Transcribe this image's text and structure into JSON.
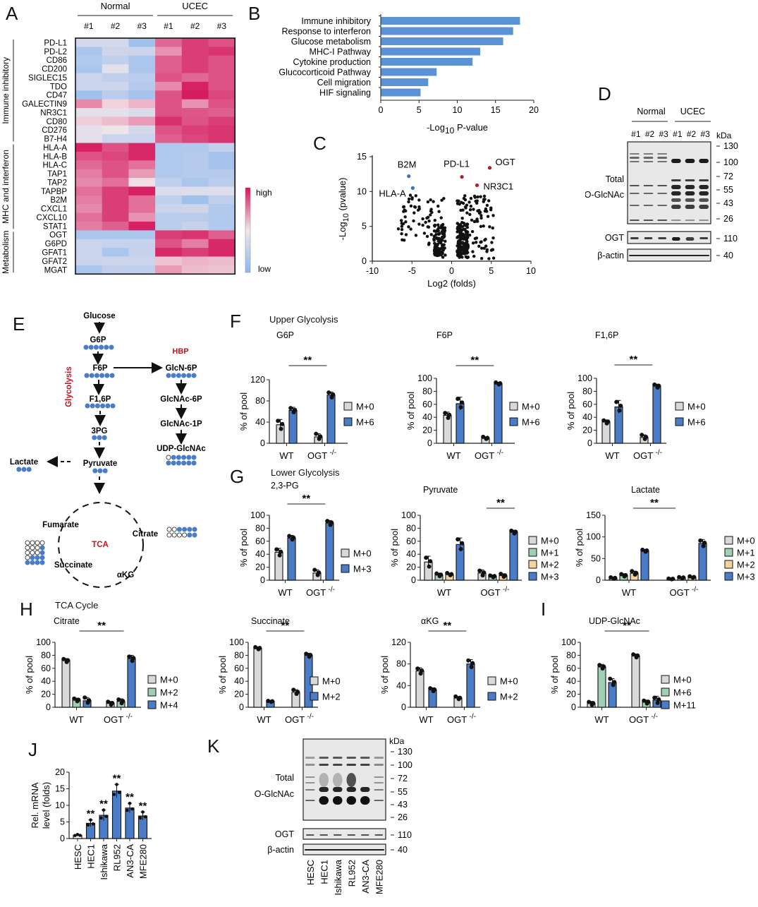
{
  "colors": {
    "blue": "#4a7cc7",
    "bar_blue": "#5b92d6",
    "gray": "#d9d9d9",
    "green": "#9fcfb4",
    "orange": "#f5d49a",
    "red_text": "#c0141e",
    "heat_high": "#d4145a",
    "heat_mid": "#f3e6ea",
    "heat_low": "#8cb8ee",
    "volcano_red": "#b01e2a",
    "volcano_blue": "#3e72c0"
  },
  "panel_labels": {
    "A": "A",
    "B": "B",
    "C": "C",
    "D": "D",
    "E": "E",
    "F": "F",
    "G": "G",
    "H": "H",
    "I": "I",
    "J": "J",
    "K": "K"
  },
  "chart_data": [
    {
      "id": "A",
      "type": "heatmap",
      "title": "",
      "column_groups": [
        {
          "label": "Normal",
          "cols": [
            "#1",
            "#2",
            "#3"
          ]
        },
        {
          "label": "UCEC",
          "cols": [
            "#1",
            "#2",
            "#3"
          ]
        }
      ],
      "columns": [
        "#1",
        "#2",
        "#3",
        "#1",
        "#2",
        "#3"
      ],
      "row_groups": [
        {
          "label": "Immune inhibitory",
          "rows": 12
        },
        {
          "label": "MHC and interferon",
          "rows": 10
        },
        {
          "label": "Metabolism",
          "rows": 5
        }
      ],
      "rows": [
        "PD-L1",
        "PD-L2",
        "CD86",
        "CD200",
        "SIGLEC15",
        "TDO",
        "CD47",
        "GALECTIN9",
        "NR3C1",
        "CD80",
        "CD276",
        "B7-H4",
        "HLA-A",
        "HLA-B",
        "HLA-C",
        "TAP1",
        "TAP2",
        "TAPBP",
        "B2M",
        "CXCL1",
        "CXCL10",
        "STAT1",
        "OGT",
        "G6PD",
        "GFAT1",
        "GFAT2",
        "MGAT"
      ],
      "values": [
        [
          0.35,
          0.35,
          0.1,
          0.8,
          0.9,
          0.85
        ],
        [
          0.15,
          0.32,
          0.3,
          0.7,
          0.9,
          0.92
        ],
        [
          0.18,
          0.25,
          0.15,
          0.82,
          0.9,
          0.85
        ],
        [
          0.15,
          0.42,
          0.15,
          0.82,
          0.9,
          0.85
        ],
        [
          0.3,
          0.25,
          0.22,
          0.85,
          0.8,
          0.85
        ],
        [
          0.3,
          0.32,
          0.2,
          0.72,
          0.97,
          0.85
        ],
        [
          0.1,
          0.22,
          0.12,
          0.85,
          0.98,
          0.88
        ],
        [
          0.72,
          0.55,
          0.62,
          0.85,
          0.7,
          0.85
        ],
        [
          0.42,
          0.42,
          0.38,
          0.85,
          0.84,
          0.82
        ],
        [
          0.56,
          0.6,
          0.68,
          0.93,
          0.85,
          0.9
        ],
        [
          0.42,
          0.48,
          0.35,
          0.85,
          0.9,
          0.92
        ],
        [
          0.42,
          0.3,
          0.3,
          0.82,
          0.88,
          0.92
        ],
        [
          0.97,
          0.85,
          0.95,
          0.18,
          0.18,
          0.25
        ],
        [
          0.85,
          0.88,
          0.95,
          0.18,
          0.2,
          0.12
        ],
        [
          0.8,
          0.85,
          0.78,
          0.18,
          0.2,
          0.12
        ],
        [
          0.75,
          0.85,
          0.68,
          0.18,
          0.2,
          0.2
        ],
        [
          0.72,
          0.78,
          0.52,
          0.25,
          0.15,
          0.22
        ],
        [
          0.78,
          0.9,
          0.97,
          0.38,
          0.4,
          0.4
        ],
        [
          0.75,
          0.9,
          0.78,
          0.25,
          0.1,
          0.25
        ],
        [
          0.72,
          0.9,
          0.78,
          0.3,
          0.32,
          0.18
        ],
        [
          0.78,
          0.9,
          0.7,
          0.22,
          0.22,
          0.18
        ],
        [
          0.75,
          0.82,
          0.97,
          0.22,
          0.28,
          0.18
        ],
        [
          0.15,
          0.15,
          0.15,
          0.9,
          0.92,
          0.82
        ],
        [
          0.3,
          0.28,
          0.28,
          0.85,
          0.75,
          0.95
        ],
        [
          0.3,
          0.15,
          0.28,
          0.95,
          0.9,
          0.95
        ],
        [
          0.3,
          0.32,
          0.3,
          0.58,
          0.62,
          0.6
        ],
        [
          0.15,
          0.25,
          0.25,
          0.68,
          0.6,
          0.58
        ]
      ],
      "colorbar": {
        "high": "high",
        "low": "low"
      }
    },
    {
      "id": "B",
      "type": "bar",
      "orientation": "horizontal",
      "categories": [
        "Immune inhibitory",
        "Response to interferon",
        "Glucose metabolism",
        "MHC-I Pathway",
        "Cytokine production",
        "Glucocorticoid Pathway",
        "Cell migration",
        "HIF signaling"
      ],
      "values": [
        18.2,
        17.3,
        16.0,
        13.0,
        12.0,
        7.3,
        6.2,
        5.2
      ],
      "xlabel": "-Log10 P-value",
      "xlabel_main": "-Log",
      "xlabel_sub": "10",
      "xlabel_rest": "P-value",
      "xlim": [
        0,
        20
      ],
      "xticks": [
        0,
        5,
        10,
        15,
        20
      ]
    },
    {
      "id": "C",
      "type": "scatter",
      "title": "",
      "xlabel": "Log2 (folds)",
      "ylabel": "-Log10 (pvalue)",
      "ylabel_main": "-Log",
      "ylabel_sub": "10",
      "ylabel_rest": "(pvalue)",
      "xlim": [
        -10,
        10
      ],
      "ylim": [
        0,
        15
      ],
      "xticks": [
        -10,
        -5,
        0,
        5,
        10
      ],
      "yticks": [
        0,
        5,
        10,
        15
      ],
      "highlighted": [
        {
          "label": "B2M",
          "x": -5.4,
          "y": 12.2,
          "color": "blue"
        },
        {
          "label": "HLA-A",
          "x": -4.9,
          "y": 10.5,
          "color": "blue"
        },
        {
          "label": "PD-L1",
          "x": 1.3,
          "y": 12.1,
          "color": "red"
        },
        {
          "label": "OGT",
          "x": 4.8,
          "y": 13.4,
          "color": "red"
        },
        {
          "label": "NR3C1",
          "x": 3.2,
          "y": 10.9,
          "color": "red"
        }
      ],
      "clusters": [
        {
          "name": "down",
          "x_range": [
            -6.8,
            -0.8
          ],
          "y_range": [
            0.5,
            9.8
          ],
          "n": 170
        },
        {
          "name": "up",
          "x_range": [
            0.6,
            5.4
          ],
          "y_range": [
            0.3,
            9.5
          ],
          "n": 230
        }
      ]
    },
    {
      "id": "F1",
      "group": "Upper Glycolysis",
      "type": "bar",
      "title": "G6P",
      "categories": [
        "WT",
        "OGT -/-"
      ],
      "ylabel": "% of pool",
      "ylim": [
        0,
        120
      ],
      "yticks": [
        0,
        40,
        80,
        120
      ],
      "series": [
        {
          "name": "M+0",
          "color": "gray",
          "values": [
            35,
            12
          ],
          "err": [
            10,
            6
          ]
        },
        {
          "name": "M+6",
          "color": "blue",
          "values": [
            62,
            91
          ],
          "err": [
            6,
            6
          ]
        }
      ],
      "significance": "**"
    },
    {
      "id": "F2",
      "group": "Upper Glycolysis",
      "type": "bar",
      "title": "F6P",
      "categories": [
        "WT",
        "OGT -/-"
      ],
      "ylabel": "% of pool",
      "ylim": [
        0,
        100
      ],
      "yticks": [
        0,
        20,
        40,
        60,
        80,
        100
      ],
      "series": [
        {
          "name": "M+0",
          "color": "gray",
          "values": [
            43,
            8
          ],
          "err": [
            5,
            2
          ]
        },
        {
          "name": "M+6",
          "color": "blue",
          "values": [
            61,
            92
          ],
          "err": [
            10,
            2
          ]
        }
      ],
      "significance": "**"
    },
    {
      "id": "F3",
      "group": "Upper Glycolysis",
      "type": "bar",
      "title": "F1,6P",
      "categories": [
        "WT",
        "OGT -/-"
      ],
      "ylabel": "% of pool",
      "ylim": [
        0,
        100
      ],
      "yticks": [
        0,
        20,
        40,
        60,
        80,
        100
      ],
      "series": [
        {
          "name": "M+0",
          "color": "gray",
          "values": [
            33,
            9
          ],
          "err": [
            3,
            4
          ]
        },
        {
          "name": "M+6",
          "color": "blue",
          "values": [
            56,
            88
          ],
          "err": [
            10,
            3
          ]
        }
      ],
      "significance": "**"
    },
    {
      "id": "G1",
      "group": "Lower Glycolysis",
      "type": "bar",
      "title": "2,3-PG",
      "categories": [
        "WT",
        "OGT -/-"
      ],
      "ylabel": "% of pool",
      "ylim": [
        0,
        100
      ],
      "yticks": [
        0,
        20,
        40,
        60,
        80,
        100
      ],
      "series": [
        {
          "name": "M+0",
          "color": "gray",
          "values": [
            43,
            11
          ],
          "err": [
            6,
            5
          ]
        },
        {
          "name": "M+3",
          "color": "blue",
          "values": [
            65,
            88
          ],
          "err": [
            4,
            4
          ]
        }
      ],
      "significance": "**"
    },
    {
      "id": "G2",
      "group": "Lower Glycolysis",
      "type": "bar",
      "title": "Pyruvate",
      "categories": [
        "WT",
        "OGT -/-"
      ],
      "ylabel": "% of pool",
      "ylim": [
        0,
        100
      ],
      "yticks": [
        0,
        20,
        40,
        60,
        80,
        100
      ],
      "series": [
        {
          "name": "M+0",
          "color": "gray",
          "values": [
            28,
            11
          ],
          "err": [
            9,
            5
          ]
        },
        {
          "name": "M+1",
          "color": "green",
          "values": [
            8,
            6
          ],
          "err": [
            3,
            2
          ]
        },
        {
          "name": "M+2",
          "color": "orange",
          "values": [
            9,
            7
          ],
          "err": [
            2,
            3
          ]
        },
        {
          "name": "M+3",
          "color": "blue",
          "values": [
            55,
            74
          ],
          "err": [
            10,
            3
          ]
        }
      ],
      "significance": "**"
    },
    {
      "id": "G3",
      "group": "Lower Glycolysis",
      "type": "bar",
      "title": "Lactate",
      "categories": [
        "WT",
        "OGT -/-"
      ],
      "ylabel": "% of pool",
      "ylim": [
        0,
        150
      ],
      "yticks": [
        0,
        50,
        100,
        150
      ],
      "series": [
        {
          "name": "M+0",
          "color": "gray",
          "values": [
            5,
            3
          ],
          "err": [
            2,
            1
          ]
        },
        {
          "name": "M+1",
          "color": "green",
          "values": [
            11,
            6
          ],
          "err": [
            4,
            2
          ]
        },
        {
          "name": "M+2",
          "color": "orange",
          "values": [
            16,
            7
          ],
          "err": [
            5,
            2
          ]
        },
        {
          "name": "M+3",
          "color": "blue",
          "values": [
            68,
            85
          ],
          "err": [
            3,
            9
          ]
        }
      ],
      "significance": "**"
    },
    {
      "id": "H1",
      "group": "TCA Cycle",
      "type": "bar",
      "title": "Citrate",
      "categories": [
        "WT",
        "OGT -/-"
      ],
      "ylabel": "% of pool",
      "ylim": [
        0,
        100
      ],
      "yticks": [
        0,
        20,
        40,
        60,
        80,
        100
      ],
      "series": [
        {
          "name": "M+0",
          "color": "gray",
          "values": [
            72,
            6
          ],
          "err": [
            3,
            3
          ]
        },
        {
          "name": "M+2",
          "color": "green",
          "values": [
            11,
            9
          ],
          "err": [
            3,
            4
          ]
        },
        {
          "name": "M+4",
          "color": "blue",
          "values": [
            10,
            75
          ],
          "err": [
            5,
            5
          ]
        }
      ],
      "significance": "**"
    },
    {
      "id": "H2",
      "group": "TCA Cycle",
      "type": "bar",
      "title": "Succinate",
      "categories": [
        "WT",
        "OGT -/-"
      ],
      "ylabel": "% of pool",
      "ylim": [
        0,
        100
      ],
      "yticks": [
        0,
        20,
        40,
        60,
        80,
        100
      ],
      "series": [
        {
          "name": "M+0",
          "color": "gray",
          "values": [
            91,
            23
          ],
          "err": [
            2,
            4
          ]
        },
        {
          "name": "M+2",
          "color": "blue",
          "values": [
            9,
            80
          ],
          "err": [
            1,
            3
          ]
        }
      ],
      "significance": "**"
    },
    {
      "id": "H3",
      "group": "TCA Cycle",
      "type": "bar",
      "title": "αKG",
      "categories": [
        "WT",
        "OGT -/-"
      ],
      "ylabel": "% of pool",
      "ylim": [
        0,
        120
      ],
      "yticks": [
        0,
        40,
        80,
        120
      ],
      "series": [
        {
          "name": "M+0",
          "color": "gray",
          "values": [
            67,
            17
          ],
          "err": [
            6,
            3
          ]
        },
        {
          "name": "M+2",
          "color": "blue",
          "values": [
            32,
            80
          ],
          "err": [
            4,
            8
          ]
        }
      ],
      "significance": "**"
    },
    {
      "id": "I",
      "group": "",
      "type": "bar",
      "title": "UDP-GlcNAc",
      "categories": [
        "WT",
        "OGT -/-"
      ],
      "ylabel": "% of pool",
      "ylim": [
        0,
        100
      ],
      "yticks": [
        0,
        20,
        40,
        60,
        80,
        100
      ],
      "series": [
        {
          "name": "M+0",
          "color": "gray",
          "values": [
            6,
            79
          ],
          "err": [
            3,
            3
          ]
        },
        {
          "name": "M+6",
          "color": "green",
          "values": [
            62,
            8
          ],
          "err": [
            4,
            3
          ]
        },
        {
          "name": "M+11",
          "color": "blue",
          "values": [
            38,
            11
          ],
          "err": [
            6,
            6
          ]
        }
      ],
      "significance": "**"
    },
    {
      "id": "J",
      "type": "bar",
      "title": "",
      "categories": [
        "HESC",
        "HEC1",
        "Ishikawa",
        "RL952",
        "AN3-CA",
        "MFE280"
      ],
      "values": [
        1.0,
        4.6,
        7.0,
        14.3,
        9.2,
        6.8
      ],
      "err": [
        0.2,
        1.0,
        1.6,
        2.0,
        1.4,
        1.2
      ],
      "significance": [
        "",
        "**",
        "**",
        "**",
        "**",
        "**"
      ],
      "ylabel": "Rel. mRNA level (folds)",
      "ylabel_line1": "Rel. mRNA",
      "ylabel_line2": "level (folds)",
      "ylim": [
        0,
        20
      ],
      "yticks": [
        0,
        5,
        10,
        15,
        20
      ]
    }
  ],
  "western_D": {
    "groups": [
      {
        "label": "Normal"
      },
      {
        "label": "UCEC"
      }
    ],
    "lanes": [
      "#1",
      "#2",
      "#3",
      "#1",
      "#2",
      "#3"
    ],
    "kda_label": "kDa",
    "markers_main": [
      "130",
      "100",
      "72",
      "55",
      "43",
      "26"
    ],
    "label_total": "Total",
    "label_oglcnac": "O-GlcNAc",
    "label_ogt": "OGT",
    "label_actin": "β-actin",
    "marker_ogt": "110",
    "marker_actin": "40"
  },
  "western_K": {
    "lanes": [
      "HESC",
      "HEC1",
      "Ishikawa",
      "RL952",
      "AN3-CA",
      "MFE280"
    ],
    "kda_label": "kDa",
    "markers_main": [
      "130",
      "100",
      "72",
      "55",
      "43",
      "26"
    ],
    "label_total": "Total",
    "label_oglcnac": "O-GlcNAc",
    "label_ogt": "OGT",
    "label_actin": "β-actin",
    "marker_ogt": "110",
    "marker_actin": "40"
  },
  "pathway_E": {
    "nodes": {
      "glucose": "Glucose",
      "g6p": "G6P",
      "f6p": "F6P",
      "f16p": "F1,6P",
      "pg3": "3PG",
      "pyruvate": "Pyruvate",
      "lactate": "Lactate",
      "glcn6p": "GlcN-6P",
      "glcnac6p": "GlcNAc-6P",
      "glcnac1p": "GlcNAc-1P",
      "udpglcnac": "UDP-GlcNAc",
      "fumarate": "Fumarate",
      "citrate": "Citrate",
      "succinate": "Succinate",
      "akg": "αKG"
    },
    "labels": {
      "glycolysis": "Glycolysis",
      "hbp": "HBP",
      "tca": "TCA"
    }
  },
  "group_titles": {
    "F": "Upper Glycolysis",
    "G": "Lower Glycolysis",
    "H": "TCA Cycle"
  },
  "mutant_label": "OGT",
  "mutant_sup": "-/-"
}
